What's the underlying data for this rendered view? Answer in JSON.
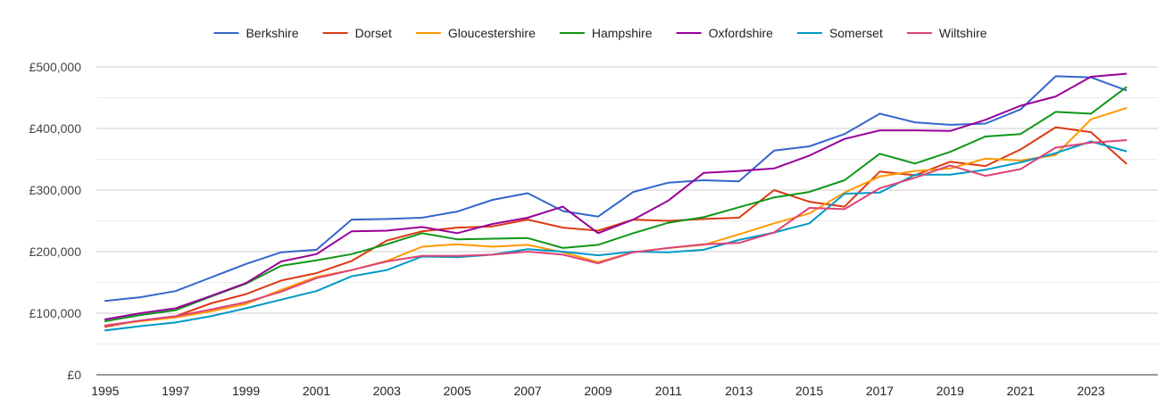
{
  "chart_data": {
    "type": "line",
    "title": "",
    "xlabel": "",
    "ylabel": "",
    "x": [
      1995,
      1996,
      1997,
      1998,
      1999,
      2000,
      2001,
      2002,
      2003,
      2004,
      2005,
      2006,
      2007,
      2008,
      2009,
      2010,
      2011,
      2012,
      2013,
      2014,
      2015,
      2016,
      2017,
      2018,
      2019,
      2020,
      2021,
      2022,
      2023,
      2024
    ],
    "x_ticks": [
      "1995",
      "1997",
      "1999",
      "2001",
      "2003",
      "2005",
      "2007",
      "2009",
      "2011",
      "2013",
      "2015",
      "2017",
      "2019",
      "2021",
      "2023"
    ],
    "y_ticks": [
      "£0",
      "£100,000",
      "£200,000",
      "£300,000",
      "£400,000",
      "£500,000"
    ],
    "ylim": [
      0,
      500000
    ],
    "grid": true,
    "legend_position": "top",
    "series": [
      {
        "name": "Berkshire",
        "color": "#3366cc",
        "values": [
          120000,
          126000,
          136000,
          158000,
          180000,
          199000,
          203000,
          252000,
          253000,
          255000,
          265000,
          284000,
          295000,
          266000,
          257000,
          297000,
          312000,
          316000,
          314000,
          364000,
          371000,
          391000,
          424000,
          410000,
          406000,
          408000,
          431000,
          485000,
          483000,
          462000
        ]
      },
      {
        "name": "Dorset",
        "color": "#dc3912",
        "values": [
          78000,
          88000,
          95000,
          116000,
          131000,
          153000,
          165000,
          185000,
          218000,
          233000,
          239000,
          241000,
          252000,
          239000,
          234000,
          252000,
          250000,
          253000,
          255000,
          300000,
          281000,
          273000,
          330000,
          324000,
          346000,
          339000,
          366000,
          402000,
          394000,
          343000
        ]
      },
      {
        "name": "Gloucestershire",
        "color": "#ff9900",
        "values": [
          80000,
          87000,
          93000,
          103000,
          115000,
          138000,
          159000,
          170000,
          185000,
          208000,
          212000,
          208000,
          211000,
          199000,
          183000,
          199000,
          206000,
          211000,
          228000,
          246000,
          262000,
          296000,
          322000,
          331000,
          335000,
          351000,
          348000,
          357000,
          415000,
          433000
        ]
      },
      {
        "name": "Hampshire",
        "color": "#109618",
        "values": [
          87000,
          97000,
          105000,
          127000,
          148000,
          177000,
          186000,
          196000,
          212000,
          230000,
          220000,
          221000,
          222000,
          206000,
          211000,
          230000,
          247000,
          256000,
          272000,
          288000,
          297000,
          316000,
          359000,
          343000,
          362000,
          387000,
          391000,
          427000,
          424000,
          467000
        ]
      },
      {
        "name": "Oxfordshire",
        "color": "#990099",
        "values": [
          90000,
          100000,
          108000,
          128000,
          149000,
          184000,
          196000,
          233000,
          234000,
          240000,
          230000,
          245000,
          255000,
          273000,
          230000,
          252000,
          283000,
          328000,
          331000,
          335000,
          356000,
          383000,
          397000,
          397000,
          396000,
          414000,
          437000,
          452000,
          484000,
          489000
        ]
      },
      {
        "name": "Somerset",
        "color": "#0099c6",
        "values": [
          72000,
          79000,
          85000,
          95000,
          108000,
          122000,
          136000,
          160000,
          170000,
          192000,
          191000,
          195000,
          204000,
          200000,
          194000,
          200000,
          199000,
          203000,
          219000,
          231000,
          246000,
          294000,
          296000,
          325000,
          325000,
          333000,
          345000,
          360000,
          379000,
          363000
        ]
      },
      {
        "name": "Wiltshire",
        "color": "#dd4477",
        "values": [
          80000,
          88000,
          95000,
          106000,
          118000,
          135000,
          157000,
          170000,
          184000,
          193000,
          193000,
          195000,
          200000,
          195000,
          181000,
          199000,
          206000,
          212000,
          214000,
          231000,
          271000,
          269000,
          303000,
          320000,
          340000,
          323000,
          334000,
          369000,
          377000,
          381000
        ]
      }
    ]
  }
}
